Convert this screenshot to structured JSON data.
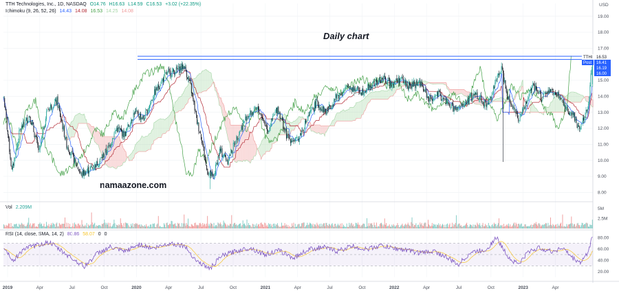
{
  "legend": {
    "symbol": "TTH Technologies, Inc., 1D, NASDAQ",
    "open": "O14.76",
    "high": "H16.63",
    "low": "L14.59",
    "close": "C16.53",
    "change": "+3.02 (+22.35%)"
  },
  "ichimoku_legend": {
    "label": "Ichimoku (9, 26, 52, 26)",
    "values": [
      "14.43",
      "14.08",
      "16.53",
      "14.25",
      "14.08"
    ]
  },
  "volume_legend": {
    "label": "Vol",
    "value": "2.209M"
  },
  "rsi_legend": {
    "label": "RSI (14, close, SMA, 14, 2)",
    "rsi_value": "80.86",
    "sma_value": "58.07",
    "extra1": "0",
    "extra2": "0"
  },
  "annotations": {
    "title": "Daily chart",
    "watermark": "namaazone.com"
  },
  "price_tags": {
    "symbol_label": "TTHI",
    "last": "16.53",
    "post_label": "Post",
    "post": "16.41",
    "level1": "16.19",
    "level2": "16.00"
  },
  "colors": {
    "up": "#26a69a",
    "down": "#131722",
    "tenkan": "#2962ff",
    "kijun": "#b22833",
    "chikou": "#43a047",
    "kumo_bull": "#a5d6a7",
    "kumo_bear": "#ef9a9a",
    "rsi": "#7e57c2",
    "rsi_sma": "#f7c52b",
    "hline": "#2962ff"
  },
  "chart_data": {
    "type": "candlestick",
    "currency": "USD",
    "price_axis": {
      "ticks": [
        "19.00",
        "18.00",
        "17.00",
        "15.00",
        "14.00",
        "13.00",
        "12.00",
        "11.00",
        "10.00",
        "9.00",
        "8.00"
      ],
      "min": 7.5,
      "max": 19.8
    },
    "volume_axis": {
      "ticks": [
        "5M",
        "2.5M"
      ],
      "max": 6
    },
    "rsi_axis": {
      "ticks": [
        "80.00",
        "60.00",
        "40.00",
        "20.00"
      ],
      "upper_band": 70,
      "lower_band": 30,
      "min": 10,
      "max": 90
    },
    "x_axis": {
      "labels": [
        "2019",
        "Apr",
        "Jul",
        "Oct",
        "2020",
        "Apr",
        "Jul",
        "Oct",
        "2021",
        "Apr",
        "Jul",
        "Oct",
        "2022",
        "Apr",
        "Jul",
        "Oct",
        "2023",
        "Apr"
      ],
      "bold": [
        "2019",
        "2020",
        "2021",
        "2022",
        "2023"
      ]
    },
    "horizontal_lines": [
      16.5,
      16.3
    ],
    "price_keypoints": [
      [
        0,
        13.9
      ],
      [
        10,
        9.3
      ],
      [
        20,
        11.9
      ],
      [
        32,
        12.8
      ],
      [
        44,
        10.5
      ],
      [
        54,
        13.2
      ],
      [
        66,
        13.7
      ],
      [
        78,
        11.0
      ],
      [
        96,
        9.1
      ],
      [
        108,
        9.5
      ],
      [
        118,
        9.9
      ],
      [
        130,
        10.8
      ],
      [
        140,
        12.0
      ],
      [
        150,
        11.6
      ],
      [
        162,
        13.0
      ],
      [
        174,
        12.6
      ],
      [
        186,
        14.1
      ],
      [
        194,
        14.8
      ],
      [
        202,
        15.4
      ],
      [
        214,
        15.6
      ],
      [
        224,
        15.9
      ],
      [
        232,
        14.6
      ],
      [
        240,
        12.4
      ],
      [
        246,
        11.3
      ],
      [
        252,
        9.4
      ],
      [
        260,
        8.9
      ],
      [
        268,
        10.6
      ],
      [
        278,
        10.0
      ],
      [
        290,
        11.5
      ],
      [
        302,
        12.8
      ],
      [
        316,
        13.2
      ],
      [
        328,
        11.9
      ],
      [
        340,
        13.3
      ],
      [
        352,
        11.4
      ],
      [
        364,
        11.2
      ],
      [
        376,
        12.5
      ],
      [
        388,
        13.6
      ],
      [
        400,
        13.0
      ],
      [
        412,
        13.9
      ],
      [
        428,
        14.6
      ],
      [
        444,
        14.3
      ],
      [
        458,
        14.7
      ],
      [
        470,
        15.1
      ],
      [
        482,
        14.8
      ],
      [
        492,
        15.1
      ],
      [
        504,
        14.6
      ],
      [
        516,
        14.9
      ],
      [
        528,
        13.8
      ],
      [
        540,
        14.1
      ],
      [
        552,
        13.5
      ],
      [
        562,
        13.1
      ],
      [
        574,
        13.6
      ],
      [
        586,
        14.2
      ],
      [
        600,
        13.4
      ],
      [
        612,
        15.0
      ],
      [
        618,
        15.8
      ],
      [
        626,
        14.0
      ],
      [
        634,
        13.2
      ],
      [
        640,
        12.5
      ],
      [
        648,
        13.5
      ],
      [
        656,
        14.6
      ],
      [
        668,
        14.0
      ],
      [
        680,
        14.3
      ],
      [
        692,
        13.9
      ],
      [
        700,
        13.1
      ],
      [
        708,
        12.8
      ],
      [
        714,
        12.0
      ],
      [
        720,
        12.6
      ],
      [
        726,
        13.4
      ],
      [
        731,
        16.5
      ]
    ],
    "rsi_keypoints": [
      [
        0,
        63
      ],
      [
        12,
        38
      ],
      [
        24,
        60
      ],
      [
        40,
        66
      ],
      [
        56,
        72
      ],
      [
        70,
        58
      ],
      [
        84,
        44
      ],
      [
        100,
        29
      ],
      [
        116,
        52
      ],
      [
        132,
        63
      ],
      [
        150,
        55
      ],
      [
        168,
        68
      ],
      [
        186,
        61
      ],
      [
        206,
        70
      ],
      [
        224,
        66
      ],
      [
        240,
        38
      ],
      [
        256,
        25
      ],
      [
        270,
        47
      ],
      [
        288,
        56
      ],
      [
        306,
        62
      ],
      [
        324,
        50
      ],
      [
        342,
        57
      ],
      [
        360,
        44
      ],
      [
        378,
        59
      ],
      [
        396,
        63
      ],
      [
        414,
        56
      ],
      [
        432,
        65
      ],
      [
        450,
        59
      ],
      [
        468,
        66
      ],
      [
        484,
        61
      ],
      [
        500,
        58
      ],
      [
        516,
        53
      ],
      [
        534,
        56
      ],
      [
        550,
        45
      ],
      [
        564,
        32
      ],
      [
        580,
        54
      ],
      [
        598,
        58
      ],
      [
        612,
        80
      ],
      [
        620,
        60
      ],
      [
        630,
        40
      ],
      [
        640,
        34
      ],
      [
        652,
        56
      ],
      [
        666,
        62
      ],
      [
        680,
        55
      ],
      [
        694,
        62
      ],
      [
        706,
        44
      ],
      [
        716,
        36
      ],
      [
        724,
        50
      ],
      [
        731,
        80.9
      ]
    ]
  }
}
